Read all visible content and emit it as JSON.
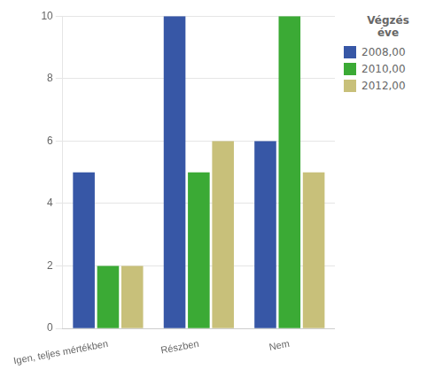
{
  "chart_data": {
    "type": "bar",
    "categories": [
      "Igen, teljes mértékben",
      "Részben",
      "Nem"
    ],
    "series": [
      {
        "name": "2008,00",
        "color": "#3757A6",
        "values": [
          5,
          10,
          6
        ]
      },
      {
        "name": "2010,00",
        "color": "#3BAA35",
        "values": [
          2,
          5,
          10
        ]
      },
      {
        "name": "2012,00",
        "color": "#C8C07A",
        "values": [
          2,
          6,
          5
        ]
      }
    ],
    "legend_title": "Végzés\néve",
    "legend": "right",
    "ylim": [
      0,
      10
    ],
    "yticks": [
      0,
      2,
      4,
      6,
      8,
      10
    ],
    "grid": true
  }
}
